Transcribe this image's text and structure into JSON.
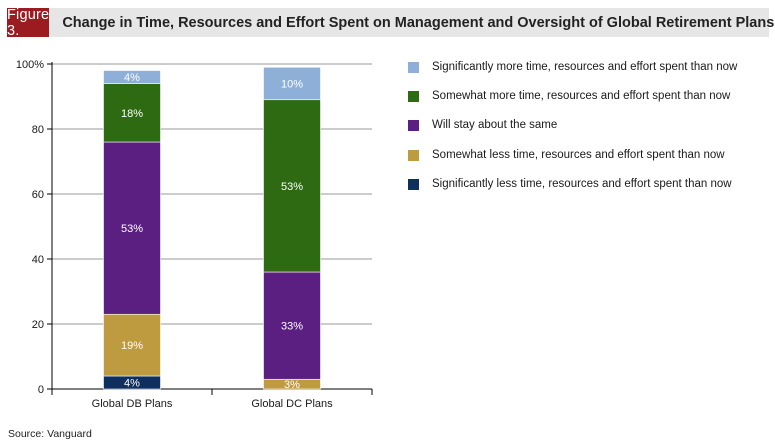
{
  "figure_label": "Figure 3.",
  "figure_title": "Change in Time, Resources and Effort Spent on Management and Oversight of Global Retirement Plans",
  "source": "Source: Vanguard",
  "colors": {
    "header_bg": "#e6e6e6",
    "label_bg": "#9b1c20",
    "sig_more": "#8eb0d8",
    "some_more": "#2e6a12",
    "same": "#5b1f81",
    "some_less": "#bf9b3f",
    "sig_less": "#0f2f5f"
  },
  "chart_data": {
    "type": "bar",
    "stacked": true,
    "categories": [
      "Global DB Plans",
      "Global DC Plans"
    ],
    "ylim": [
      0,
      100
    ],
    "yticks": [
      0,
      20,
      40,
      60,
      80,
      100
    ],
    "ytick_labels": [
      "0",
      "20",
      "40",
      "60",
      "80",
      "100%"
    ],
    "grid": true,
    "legend_position": "right",
    "series": [
      {
        "name": "Significantly less time, resources and effort spent than now",
        "color_key": "sig_less",
        "values": [
          4,
          0
        ],
        "labels": [
          "4%",
          ""
        ]
      },
      {
        "name": "Somewhat less time, resources and effort spent than now",
        "color_key": "some_less",
        "values": [
          19,
          3
        ],
        "labels": [
          "19%",
          "3%"
        ]
      },
      {
        "name": "Will stay about the same",
        "color_key": "same",
        "values": [
          53,
          33
        ],
        "labels": [
          "53%",
          "33%"
        ]
      },
      {
        "name": "Somewhat more time, resources and effort spent than now",
        "color_key": "some_more",
        "values": [
          18,
          53
        ],
        "labels": [
          "18%",
          "53%"
        ]
      },
      {
        "name": "Significantly more time, resources and effort spent than now",
        "color_key": "sig_more",
        "values": [
          4,
          10
        ],
        "labels": [
          "4%",
          "10%"
        ]
      }
    ]
  }
}
